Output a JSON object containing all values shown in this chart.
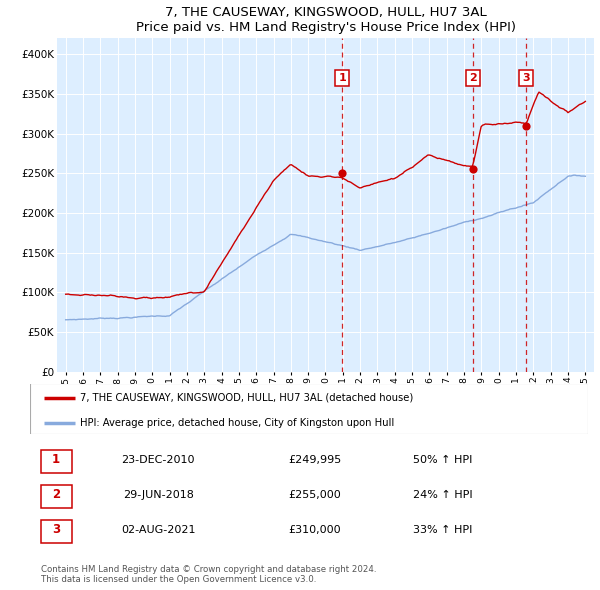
{
  "title": "7, THE CAUSEWAY, KINGSWOOD, HULL, HU7 3AL",
  "subtitle": "Price paid vs. HM Land Registry's House Price Index (HPI)",
  "xlim": [
    1994.5,
    2025.5
  ],
  "ylim": [
    0,
    420000
  ],
  "yticks": [
    0,
    50000,
    100000,
    150000,
    200000,
    250000,
    300000,
    350000,
    400000
  ],
  "ytick_labels": [
    "£0",
    "£50K",
    "£100K",
    "£150K",
    "£200K",
    "£250K",
    "£300K",
    "£350K",
    "£400K"
  ],
  "property_color": "#cc0000",
  "hpi_color": "#88aadd",
  "background_color": "#ddeeff",
  "sale_dates": [
    2010.98,
    2018.5,
    2021.59
  ],
  "sale_prices": [
    249995,
    255000,
    310000
  ],
  "sale_labels": [
    "1",
    "2",
    "3"
  ],
  "vline_dates": [
    2010.98,
    2018.5,
    2021.59
  ],
  "legend_property": "7, THE CAUSEWAY, KINGSWOOD, HULL, HU7 3AL (detached house)",
  "legend_hpi": "HPI: Average price, detached house, City of Kingston upon Hull",
  "table_rows": [
    [
      "1",
      "23-DEC-2010",
      "£249,995",
      "50% ↑ HPI"
    ],
    [
      "2",
      "29-JUN-2018",
      "£255,000",
      "24% ↑ HPI"
    ],
    [
      "3",
      "02-AUG-2021",
      "£310,000",
      "33% ↑ HPI"
    ]
  ],
  "footnote": "Contains HM Land Registry data © Crown copyright and database right 2024.\nThis data is licensed under the Open Government Licence v3.0."
}
